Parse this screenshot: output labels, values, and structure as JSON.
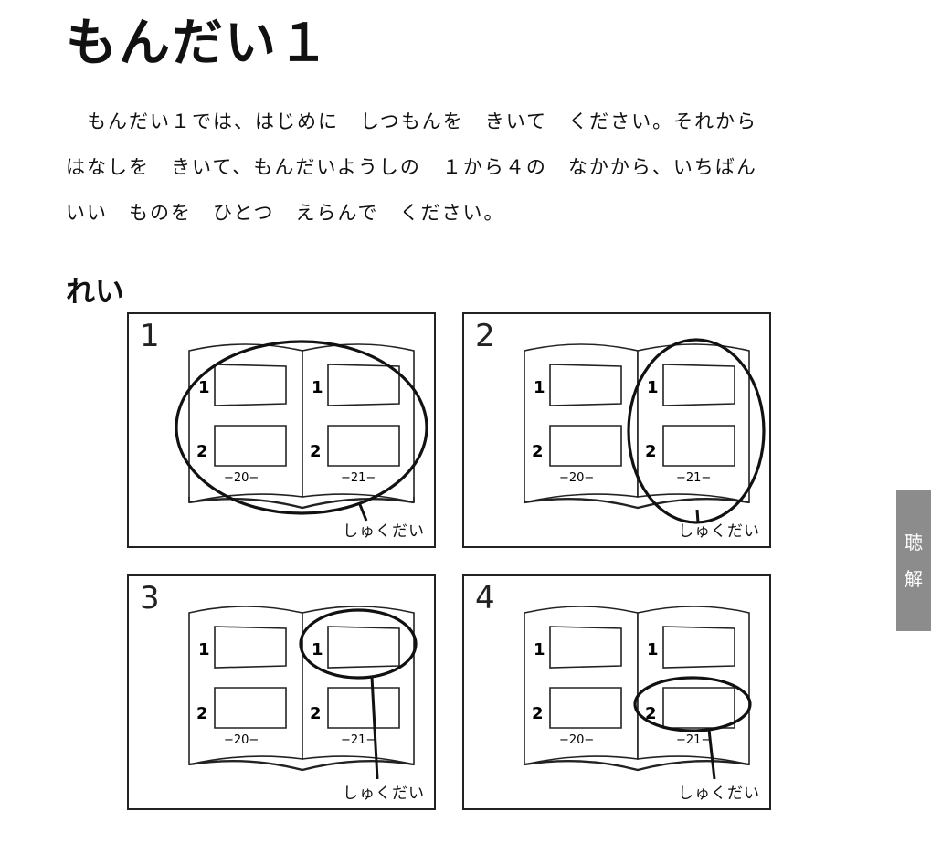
{
  "heading": "もんだい１",
  "instructions": [
    "　もんだい１では、はじめに　しつもんを　きいて　ください。それから",
    "はなしを　きいて、もんだいようしの　１から４の　なかから、いちばん",
    "いい　ものを　ひとつ　えらんで　ください。"
  ],
  "example_label": "れい",
  "options": [
    {
      "number": "1",
      "label": "しゅくだい",
      "page_left": "−20−",
      "page_right": "−21−",
      "item_1": "1",
      "item_2": "2"
    },
    {
      "number": "2",
      "label": "しゅくだい",
      "page_left": "−20−",
      "page_right": "−21−",
      "item_1": "1",
      "item_2": "2"
    },
    {
      "number": "3",
      "label": "しゅくだい",
      "page_left": "−20−",
      "page_right": "−21−",
      "item_1": "1",
      "item_2": "2"
    },
    {
      "number": "4",
      "label": "しゅくだい",
      "page_left": "−20−",
      "page_right": "−21−",
      "item_1": "1",
      "item_2": "2"
    }
  ],
  "side_tab": [
    "聴",
    "解"
  ]
}
